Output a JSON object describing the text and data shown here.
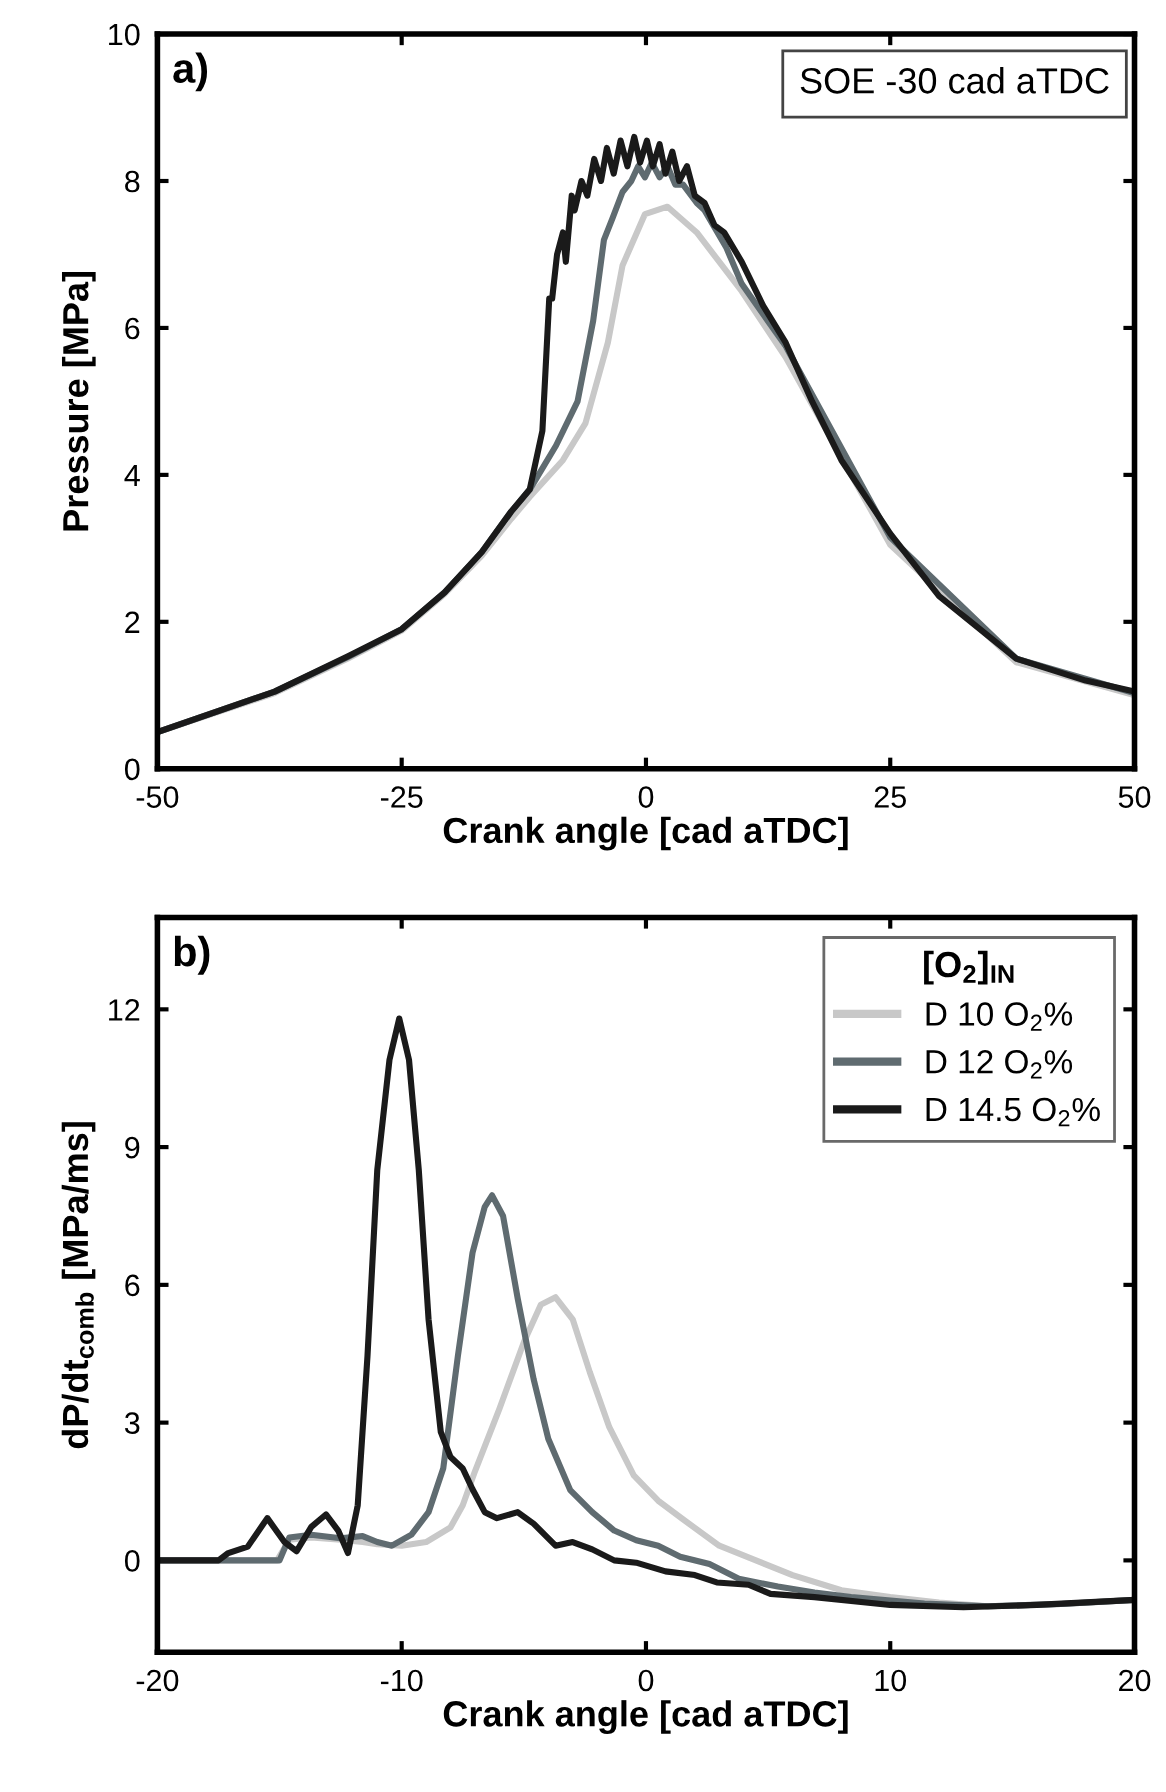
{
  "chart_data": [
    {
      "type": "line",
      "xlabel": "Crank angle [cad aTDC]",
      "ylabel": "Pressure [MPa]",
      "annotations": [
        "a)",
        "SOE -30 cad aTDC"
      ],
      "xlim": [
        -50,
        50
      ],
      "ylim": [
        0,
        10
      ],
      "xticks": [
        -50,
        -25,
        0,
        25,
        50
      ],
      "yticks": [
        0,
        2,
        4,
        6,
        8,
        10
      ],
      "grid": false,
      "legend": false,
      "line_style": "solid",
      "marker": "none",
      "series": [
        {
          "color": "#c8c8c8",
          "x": [
            -50,
            -38,
            -30.5,
            -25,
            -20.6,
            -16.8,
            -13.8,
            -11.9,
            -8.5,
            -6.2,
            -3.9,
            -2.4,
            -0.1,
            2.2,
            5.2,
            9.8,
            14.3,
            25,
            37.9,
            50
          ],
          "values": [
            0.5,
            1.03,
            1.5,
            1.88,
            2.38,
            2.9,
            3.4,
            3.7,
            4.2,
            4.7,
            5.8,
            6.85,
            7.55,
            7.65,
            7.3,
            6.5,
            5.6,
            3.05,
            1.45,
            1.0
          ]
        },
        {
          "color": "#5f6b70",
          "x": [
            -50,
            -38,
            -30.5,
            -25,
            -20.6,
            -16.8,
            -13.8,
            -11.9,
            -9.2,
            -7,
            -5.4,
            -4.3,
            -3.4,
            -2.4,
            -1.5,
            -0.8,
            -0.1,
            0.6,
            1.4,
            2.2,
            3.0,
            3.8,
            5.2,
            6.0,
            8.2,
            9.8,
            14.3,
            25,
            37.9,
            50
          ],
          "values": [
            0.5,
            1.05,
            1.52,
            1.9,
            2.4,
            2.95,
            3.5,
            3.8,
            4.4,
            5.0,
            6.1,
            7.2,
            7.5,
            7.85,
            8.0,
            8.2,
            8.05,
            8.25,
            8.05,
            8.2,
            7.95,
            7.95,
            7.7,
            7.6,
            7.1,
            6.6,
            5.75,
            3.15,
            1.5,
            1.03
          ]
        },
        {
          "color": "#1a1a1a",
          "x": [
            -50,
            -38,
            -30.5,
            -25,
            -20.6,
            -16.8,
            -13.8,
            -11.9,
            -10.6,
            -9.9,
            -9.6,
            -9.1,
            -8.5,
            -8.2,
            -7.6,
            -7.3,
            -6.6,
            -6.0,
            -5.3,
            -4.6,
            -4.0,
            -3.3,
            -2.6,
            -1.9,
            -1.2,
            -0.6,
            0.1,
            0.7,
            1.4,
            2.0,
            2.7,
            3.4,
            4.2,
            5.0,
            6.0,
            7.0,
            8.0,
            9.8,
            12,
            14.3,
            17,
            20,
            25,
            30,
            37.9,
            45,
            50
          ],
          "values": [
            0.5,
            1.05,
            1.53,
            1.9,
            2.4,
            2.95,
            3.5,
            3.8,
            4.6,
            6.4,
            6.4,
            7.0,
            7.3,
            6.9,
            7.8,
            7.6,
            8.0,
            7.8,
            8.3,
            8.0,
            8.45,
            8.1,
            8.55,
            8.2,
            8.6,
            8.25,
            8.55,
            8.2,
            8.5,
            8.1,
            8.4,
            8.0,
            8.2,
            7.8,
            7.7,
            7.4,
            7.3,
            6.9,
            6.3,
            5.8,
            5.0,
            4.2,
            3.2,
            2.35,
            1.5,
            1.2,
            1.05
          ]
        }
      ]
    },
    {
      "type": "line",
      "xlabel": "Crank angle [cad aTDC]",
      "ylabel": "dP/dt$_{comb}$ [MPa/ms]",
      "legend_title": "[O$_{2}$]$_{IN}$",
      "annotations": [
        "b)"
      ],
      "xlim": [
        -20,
        20
      ],
      "ylim": [
        -2,
        14
      ],
      "xticks": [
        -20,
        -10,
        0,
        10,
        20
      ],
      "yticks": [
        0,
        3,
        6,
        9,
        12
      ],
      "grid": false,
      "legend": "top right",
      "line_style": "solid",
      "marker": "none",
      "series": [
        {
          "name": "D 10 O$_{2}$%",
          "color": "#c8c8c8",
          "x": [
            -20,
            -15.1,
            -14.6,
            -13.7,
            -12.5,
            -11.6,
            -11.0,
            -10.0,
            -9.0,
            -8.0,
            -7.5,
            -7.0,
            -6.0,
            -5.0,
            -4.3,
            -3.7,
            -3.0,
            -2.3,
            -1.5,
            -0.5,
            0.5,
            1.5,
            3.0,
            4.5,
            6.0,
            8.0,
            10.0,
            12.0,
            14.0,
            17.0,
            20.0
          ],
          "values": [
            0,
            0,
            0.45,
            0.5,
            0.45,
            0.4,
            0.35,
            0.32,
            0.4,
            0.72,
            1.2,
            1.94,
            3.3,
            4.75,
            5.57,
            5.73,
            5.25,
            4.1,
            2.9,
            1.85,
            1.3,
            0.9,
            0.32,
            0,
            -0.32,
            -0.65,
            -0.8,
            -0.92,
            -1.0,
            -0.95,
            -0.86
          ]
        },
        {
          "name": "D 12 O$_{2}$%",
          "color": "#5f6b70",
          "x": [
            -20,
            -15.0,
            -14.6,
            -13.7,
            -12.5,
            -11.6,
            -11.0,
            -10.4,
            -9.6,
            -8.9,
            -8.3,
            -7.7,
            -7.1,
            -6.6,
            -6.3,
            -5.85,
            -5.25,
            -4.6,
            -4.0,
            -3.1,
            -2.2,
            -1.3,
            -0.4,
            0.5,
            1.4,
            2.6,
            3.8,
            5.4,
            6.9,
            8.4,
            11.4,
            14.0,
            17.0,
            20.0
          ],
          "values": [
            0,
            0,
            0.5,
            0.56,
            0.48,
            0.53,
            0.4,
            0.32,
            0.56,
            1.05,
            2.0,
            4.45,
            6.7,
            7.7,
            7.95,
            7.5,
            5.7,
            3.95,
            2.65,
            1.53,
            1.05,
            0.65,
            0.44,
            0.32,
            0.08,
            -0.08,
            -0.4,
            -0.57,
            -0.7,
            -0.8,
            -0.94,
            -1.0,
            -0.95,
            -0.86
          ]
        },
        {
          "name": "D 14.5 O$_{2}$%",
          "color": "#1a1a1a",
          "x": [
            -20,
            -17.5,
            -17.1,
            -16.3,
            -15.5,
            -14.8,
            -14.3,
            -13.7,
            -13.1,
            -12.6,
            -12.2,
            -11.8,
            -11.4,
            -11.0,
            -10.5,
            -10.1,
            -9.7,
            -9.3,
            -8.9,
            -8.4,
            -8.0,
            -7.5,
            -7.1,
            -6.6,
            -6.1,
            -5.25,
            -4.6,
            -3.7,
            -3.0,
            -2.2,
            -1.3,
            -0.4,
            0.8,
            2.0,
            2.9,
            4.2,
            5.1,
            6.9,
            10.0,
            13.0,
            16.0,
            20.0
          ],
          "values": [
            0,
            0,
            0.16,
            0.3,
            0.92,
            0.4,
            0.2,
            0.73,
            1.0,
            0.65,
            0.16,
            1.2,
            4.45,
            8.5,
            10.9,
            11.8,
            10.9,
            8.5,
            5.25,
            2.8,
            2.25,
            2.0,
            1.55,
            1.05,
            0.92,
            1.05,
            0.8,
            0.32,
            0.4,
            0.24,
            0,
            -0.05,
            -0.24,
            -0.32,
            -0.48,
            -0.53,
            -0.73,
            -0.8,
            -0.97,
            -1.02,
            -0.97,
            -0.86
          ]
        }
      ]
    }
  ]
}
